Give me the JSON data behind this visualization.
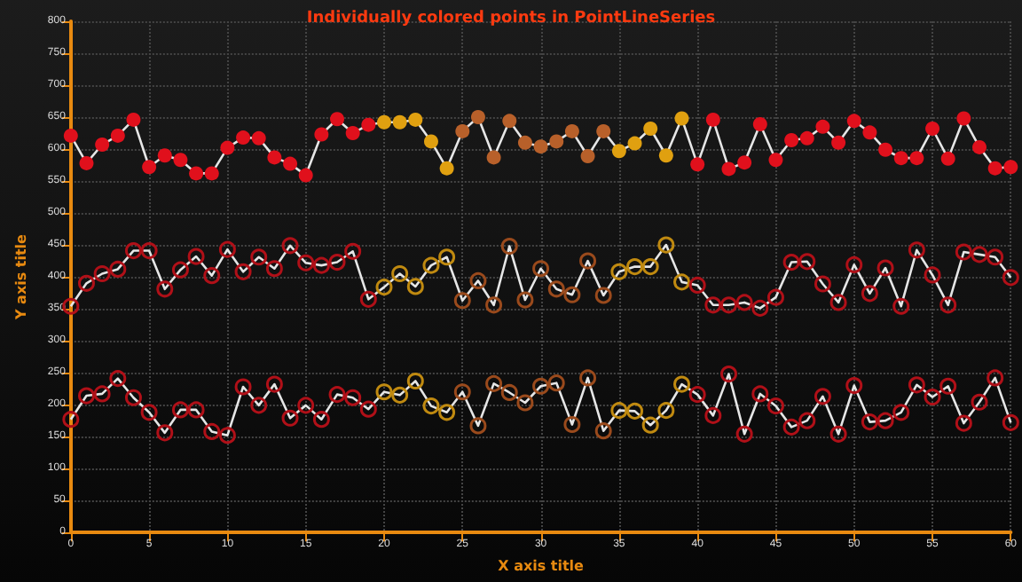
{
  "chart_data": {
    "type": "line",
    "title": "Individually colored points in PointLineSeries",
    "xlabel": "X axis title",
    "ylabel": "Y axis title",
    "x": [
      0,
      1,
      2,
      3,
      4,
      5,
      6,
      7,
      8,
      9,
      10,
      11,
      12,
      13,
      14,
      15,
      16,
      17,
      18,
      19,
      20,
      21,
      22,
      23,
      24,
      25,
      26,
      27,
      28,
      29,
      30,
      31,
      32,
      33,
      34,
      35,
      36,
      37,
      38,
      39,
      40,
      41,
      42,
      43,
      44,
      45,
      46,
      47,
      48,
      49,
      50,
      51,
      52,
      53,
      54,
      55,
      56,
      57,
      58,
      59,
      60
    ],
    "series": [
      {
        "color": "#e6e6e6",
        "values": [
          621,
          578,
          607,
          621,
          646,
          572,
          590,
          583,
          562,
          562,
          602,
          618,
          617,
          587,
          577,
          559,
          623,
          647,
          625,
          638,
          642,
          642,
          646,
          612,
          570,
          628,
          650,
          587,
          644,
          610,
          604,
          612,
          628,
          589,
          628,
          597,
          609,
          632,
          590,
          648,
          576,
          646,
          569,
          579,
          639,
          583,
          614,
          617,
          635,
          610,
          644,
          626,
          599,
          586,
          586,
          632,
          585,
          648,
          603,
          570,
          572
        ],
        "colors": [
          "#e0101c",
          "#e0101c",
          "#e0101c",
          "#e0101c",
          "#e0101c",
          "#e0101c",
          "#e0101c",
          "#e0101c",
          "#e0101c",
          "#e0101c",
          "#e0101c",
          "#e0101c",
          "#e0101c",
          "#e0101c",
          "#e0101c",
          "#e0101c",
          "#e0101c",
          "#e0101c",
          "#e0101c",
          "#e0101c",
          "#e0a010",
          "#e0a010",
          "#e0a010",
          "#e0a010",
          "#e0a010",
          "#b8602a",
          "#b8602a",
          "#b8602a",
          "#b8602a",
          "#b8602a",
          "#b8602a",
          "#b8602a",
          "#b8602a",
          "#b8602a",
          "#b8602a",
          "#e0a010",
          "#e0a010",
          "#e0a010",
          "#e0a010",
          "#e0a010",
          "#e0101c",
          "#e0101c",
          "#e0101c",
          "#e0101c",
          "#e0101c",
          "#e0101c",
          "#e0101c",
          "#e0101c",
          "#e0101c",
          "#e0101c",
          "#e0101c",
          "#e0101c",
          "#e0101c",
          "#e0101c",
          "#e0101c",
          "#e0101c",
          "#e0101c",
          "#e0101c",
          "#e0101c",
          "#e0101c",
          "#e0101c"
        ]
      },
      {
        "color": "#e6e6e6",
        "values": [
          354,
          390,
          405,
          412,
          441,
          441,
          381,
          411,
          432,
          402,
          443,
          408,
          431,
          413,
          449,
          422,
          418,
          423,
          440,
          365,
          384,
          405,
          385,
          418,
          431,
          363,
          394,
          356,
          448,
          364,
          413,
          381,
          372,
          425,
          371,
          408,
          416,
          416,
          450,
          392,
          387,
          356,
          356,
          360,
          351,
          368,
          423,
          424,
          389,
          360,
          419,
          374,
          414,
          354,
          442,
          403,
          356,
          439,
          435,
          431,
          399
        ],
        "colors": [
          "#b01018",
          "#b01018",
          "#b01018",
          "#b01018",
          "#b01018",
          "#b01018",
          "#b01018",
          "#b01018",
          "#b01018",
          "#b01018",
          "#b01018",
          "#b01018",
          "#b01018",
          "#b01018",
          "#b01018",
          "#b01018",
          "#b01018",
          "#b01018",
          "#b01018",
          "#b01018",
          "#c08a10",
          "#c08a10",
          "#c08a10",
          "#c08a10",
          "#c08a10",
          "#9a4a1c",
          "#9a4a1c",
          "#9a4a1c",
          "#9a4a1c",
          "#9a4a1c",
          "#9a4a1c",
          "#9a4a1c",
          "#9a4a1c",
          "#9a4a1c",
          "#9a4a1c",
          "#c08a10",
          "#c08a10",
          "#c08a10",
          "#c08a10",
          "#c08a10",
          "#b01018",
          "#b01018",
          "#b01018",
          "#b01018",
          "#b01018",
          "#b01018",
          "#b01018",
          "#b01018",
          "#b01018",
          "#b01018",
          "#b01018",
          "#b01018",
          "#b01018",
          "#b01018",
          "#b01018",
          "#b01018",
          "#b01018",
          "#b01018",
          "#b01018",
          "#b01018",
          "#b01018"
        ]
      },
      {
        "color": "#e6e6e6",
        "values": [
          177,
          214,
          217,
          241,
          211,
          188,
          156,
          192,
          192,
          158,
          152,
          228,
          199,
          232,
          179,
          199,
          177,
          216,
          211,
          193,
          220,
          215,
          237,
          198,
          188,
          220,
          167,
          233,
          219,
          203,
          229,
          234,
          169,
          242,
          159,
          191,
          190,
          168,
          191,
          232,
          216,
          183,
          248,
          154,
          217,
          198,
          165,
          175,
          213,
          154,
          230,
          173,
          175,
          188,
          231,
          212,
          229,
          171,
          204,
          242,
          172
        ],
        "colors": [
          "#b01018",
          "#b01018",
          "#b01018",
          "#b01018",
          "#b01018",
          "#b01018",
          "#b01018",
          "#b01018",
          "#b01018",
          "#b01018",
          "#b01018",
          "#b01018",
          "#b01018",
          "#b01018",
          "#b01018",
          "#b01018",
          "#b01018",
          "#b01018",
          "#b01018",
          "#b01018",
          "#c08a10",
          "#c08a10",
          "#c08a10",
          "#c08a10",
          "#c08a10",
          "#9a4a1c",
          "#9a4a1c",
          "#9a4a1c",
          "#9a4a1c",
          "#9a4a1c",
          "#9a4a1c",
          "#9a4a1c",
          "#9a4a1c",
          "#9a4a1c",
          "#9a4a1c",
          "#c08a10",
          "#c08a10",
          "#c08a10",
          "#c08a10",
          "#c08a10",
          "#b01018",
          "#b01018",
          "#b01018",
          "#b01018",
          "#b01018",
          "#b01018",
          "#b01018",
          "#b01018",
          "#b01018",
          "#b01018",
          "#b01018",
          "#b01018",
          "#b01018",
          "#b01018",
          "#b01018",
          "#b01018",
          "#b01018",
          "#b01018",
          "#b01018",
          "#b01018",
          "#b01018"
        ]
      }
    ],
    "xlim": [
      0,
      60
    ],
    "xticks": [
      0,
      5,
      10,
      15,
      20,
      25,
      30,
      35,
      40,
      45,
      50,
      55,
      60
    ],
    "ylim": [
      0,
      800
    ],
    "yticks": [
      0,
      50,
      100,
      150,
      200,
      250,
      300,
      350,
      400,
      450,
      500,
      550,
      600,
      650,
      700,
      750,
      800
    ],
    "grid": true,
    "marker": "circle",
    "line_style": "solid"
  }
}
